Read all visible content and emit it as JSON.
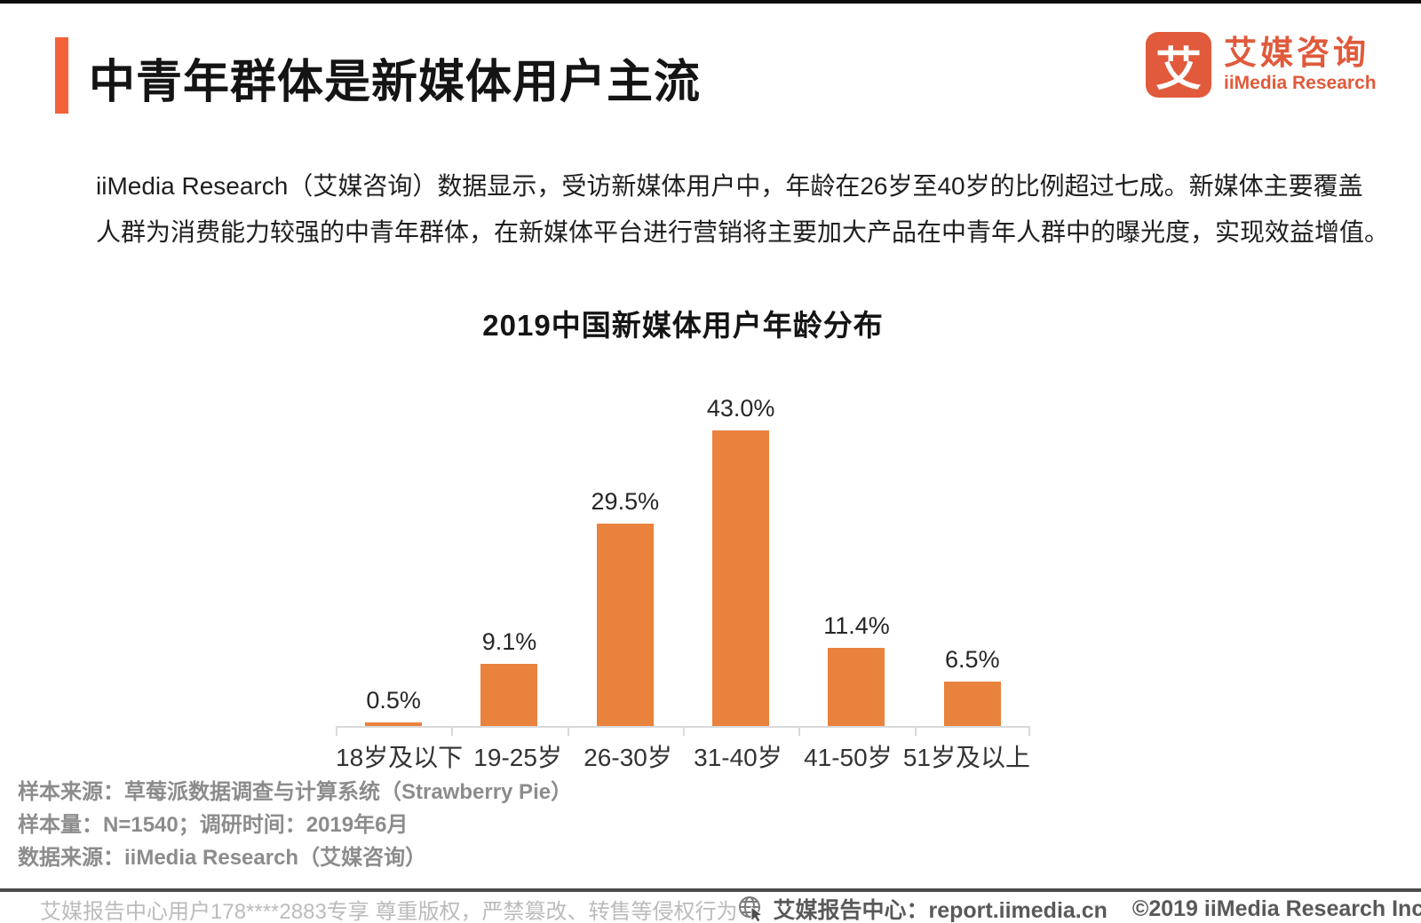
{
  "header": {
    "title": "中青年群体是新媒体用户主流",
    "accent_color": "#F4623C"
  },
  "logo": {
    "mark_glyph": "艾",
    "name_cn": "艾媒咨询",
    "name_en": "iiMedia Research",
    "brand_color": "#E05A3B"
  },
  "intro": {
    "lines": [
      "iiMedia Research（艾媒咨询）数据显示，受访新媒体用户中，年龄在26岁至40岁的比例超过七成。新媒体主要覆盖",
      "人群为消费能力较强的中青年群体，在新媒体平台进行营销将主要加大产品在中青年人群中的曝光度，实现效益增值。"
    ]
  },
  "chart_data": {
    "type": "bar",
    "title": "2019中国新媒体用户年龄分布",
    "categories": [
      "18岁及以下",
      "19-25岁",
      "26-30岁",
      "31-40岁",
      "41-50岁",
      "51岁及以上"
    ],
    "values": [
      0.5,
      9.1,
      29.5,
      43.0,
      11.4,
      6.5
    ],
    "value_labels": [
      "0.5%",
      "9.1%",
      "29.5%",
      "43.0%",
      "11.4%",
      "6.5%"
    ],
    "bar_color": "#E8823C",
    "ylim": [
      0,
      45
    ],
    "grid": false,
    "legend": "none",
    "xlabel": "",
    "ylabel": ""
  },
  "notes": {
    "lines": [
      "样本来源：草莓派数据调查与计算系统（Strawberry Pie）",
      "样本量：N=1540；调研时间：2019年6月",
      "数据来源：iiMedia Research（艾媒咨询）"
    ]
  },
  "footer": {
    "watermark": "艾媒报告中心用户178****2883专享 尊重版权，严禁篡改、转售等侵权行为",
    "center_label": "艾媒报告中心：report.iimedia.cn",
    "copyright": "©2019  iiMedia Research Inc"
  }
}
